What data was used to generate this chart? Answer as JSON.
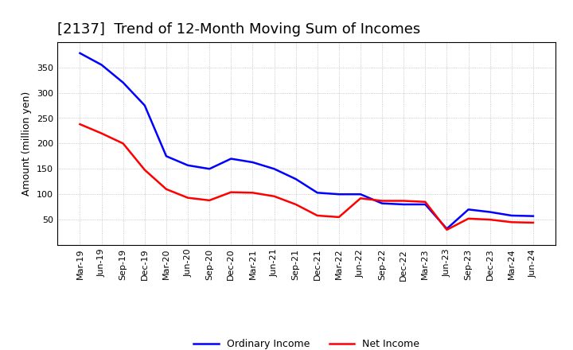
{
  "title": "[2137]  Trend of 12-Month Moving Sum of Incomes",
  "ylabel": "Amount (million yen)",
  "x_labels": [
    "Mar-19",
    "Jun-19",
    "Sep-19",
    "Dec-19",
    "Mar-20",
    "Jun-20",
    "Sep-20",
    "Dec-20",
    "Mar-21",
    "Jun-21",
    "Sep-21",
    "Dec-21",
    "Mar-22",
    "Jun-22",
    "Sep-22",
    "Dec-22",
    "Mar-23",
    "Jun-23",
    "Sep-23",
    "Dec-23",
    "Mar-24",
    "Jun-24"
  ],
  "ordinary_income": [
    378,
    355,
    320,
    275,
    175,
    157,
    150,
    170,
    163,
    150,
    130,
    103,
    100,
    100,
    82,
    80,
    80,
    32,
    70,
    65,
    58,
    57
  ],
  "net_income": [
    238,
    220,
    200,
    148,
    110,
    93,
    88,
    104,
    103,
    96,
    80,
    58,
    55,
    92,
    87,
    87,
    85,
    30,
    52,
    50,
    45,
    44
  ],
  "ordinary_color": "#0000ff",
  "net_color": "#ff0000",
  "line_width": 1.8,
  "ylim": [
    0,
    400
  ],
  "yticks": [
    50,
    100,
    150,
    200,
    250,
    300,
    350
  ],
  "grid_color": "#aaaaaa",
  "background_color": "#ffffff",
  "title_fontsize": 13,
  "axis_label_fontsize": 9,
  "tick_fontsize": 8,
  "legend_fontsize": 9
}
